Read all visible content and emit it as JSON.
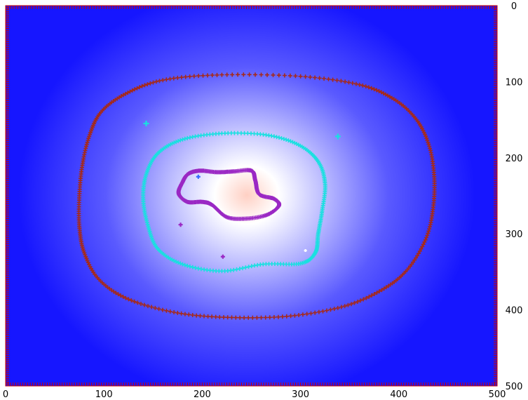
{
  "chart_data": {
    "type": "heatmap",
    "title": "",
    "xlabel": "",
    "ylabel": "",
    "xlim": [
      0,
      500
    ],
    "ylim": [
      0,
      500
    ],
    "y_axis_position": "right",
    "y_axis_inverted": true,
    "x_ticks": [
      "0",
      "100",
      "200",
      "300",
      "400",
      "500"
    ],
    "y_ticks": [
      "0",
      "100",
      "200",
      "300",
      "400",
      "500"
    ],
    "colormap": [
      "#1616ff",
      "#5a5aff",
      "#b8b8ff",
      "#ffffff",
      "#ffd0c4"
    ],
    "grid": false,
    "legend": "none",
    "peak": {
      "x": 245,
      "y": 250
    },
    "contours": [
      {
        "level": 1,
        "color": "#a52a1a",
        "marker": "plus",
        "points": [
          [
            220,
            91
          ],
          [
            300,
            93
          ],
          [
            360,
            104
          ],
          [
            395,
            123
          ],
          [
            418,
            150
          ],
          [
            431,
            185
          ],
          [
            436,
            225
          ],
          [
            435,
            265
          ],
          [
            428,
            305
          ],
          [
            410,
            345
          ],
          [
            385,
            372
          ],
          [
            345,
            395
          ],
          [
            290,
            408
          ],
          [
            230,
            410
          ],
          [
            175,
            404
          ],
          [
            125,
            386
          ],
          [
            95,
            360
          ],
          [
            80,
            325
          ],
          [
            75,
            290
          ],
          [
            75,
            250
          ],
          [
            78,
            210
          ],
          [
            85,
            172
          ],
          [
            97,
            140
          ],
          [
            122,
            116
          ],
          [
            160,
            98
          ]
        ]
      },
      {
        "level": 2,
        "color": "#19e0e0",
        "marker": "plus",
        "points": [
          [
            220,
            168
          ],
          [
            265,
            170
          ],
          [
            298,
            183
          ],
          [
            318,
            205
          ],
          [
            325,
            235
          ],
          [
            322,
            270
          ],
          [
            318,
            300
          ],
          [
            315,
            325
          ],
          [
            300,
            339
          ],
          [
            262,
            340
          ],
          [
            220,
            349
          ],
          [
            180,
            340
          ],
          [
            155,
            320
          ],
          [
            145,
            290
          ],
          [
            140,
            255
          ],
          [
            143,
            222
          ],
          [
            155,
            194
          ],
          [
            180,
            176
          ]
        ]
      },
      {
        "level": 3,
        "color": "#9a28c4",
        "marker": "plus",
        "points": [
          [
            198,
            217
          ],
          [
            215,
            219
          ],
          [
            232,
            218
          ],
          [
            250,
            217
          ],
          [
            254,
            230
          ],
          [
            258,
            248
          ],
          [
            273,
            254
          ],
          [
            278,
            263
          ],
          [
            266,
            275
          ],
          [
            245,
            280
          ],
          [
            225,
            278
          ],
          [
            210,
            262
          ],
          [
            200,
            258
          ],
          [
            185,
            258
          ],
          [
            176,
            247
          ],
          [
            180,
            232
          ],
          [
            186,
            221
          ]
        ]
      }
    ],
    "isolated_markers": [
      {
        "x": 143,
        "y": 155,
        "color": "#19e0e0",
        "size": 4
      },
      {
        "x": 338,
        "y": 172,
        "color": "#19e0e0",
        "size": 4
      },
      {
        "x": 178,
        "y": 288,
        "color": "#9a28c4",
        "size": 3
      },
      {
        "x": 221,
        "y": 330,
        "color": "#9a28c4",
        "size": 3
      },
      {
        "x": 196,
        "y": 225,
        "color": "#3a6cff",
        "size": 3
      },
      {
        "x": 305,
        "y": 322,
        "color": "#ffffff",
        "size": 2
      }
    ]
  }
}
